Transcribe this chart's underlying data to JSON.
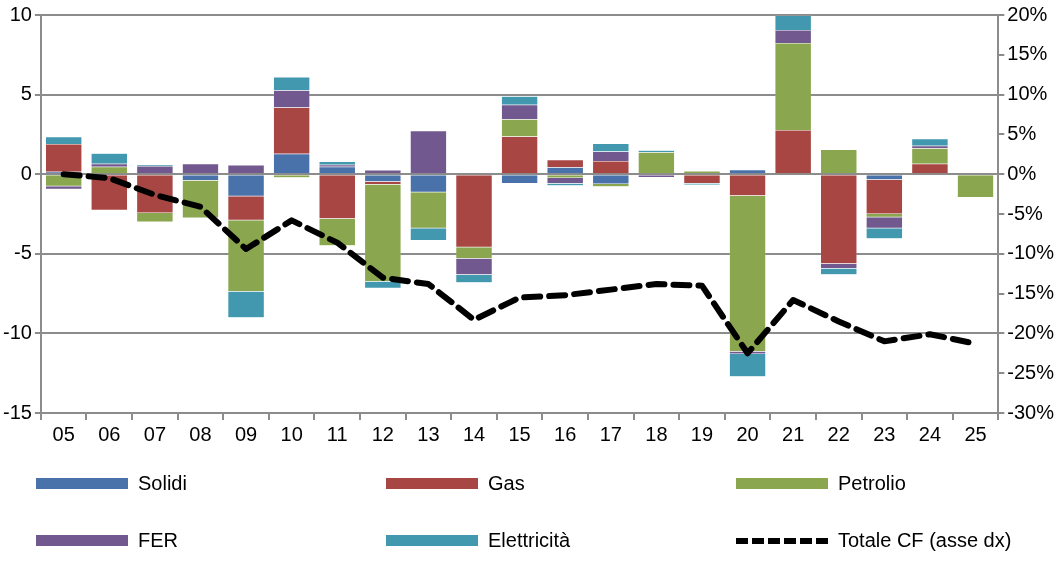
{
  "chart_data": {
    "type": "bar",
    "stacked": true,
    "categories": [
      "05",
      "06",
      "07",
      "08",
      "09",
      "10",
      "11",
      "12",
      "13",
      "14",
      "15",
      "16",
      "17",
      "18",
      "19",
      "20",
      "21",
      "22",
      "23",
      "24",
      "25"
    ],
    "series": [
      {
        "name": "Solidi",
        "color": "#4a72aa",
        "values": [
          0.15,
          null,
          null,
          -0.39,
          -1.38,
          1.28,
          0.47,
          -0.47,
          -1.13,
          null,
          -0.58,
          0.43,
          -0.62,
          null,
          null,
          0.28,
          null,
          null,
          -0.35,
          null,
          null
        ]
      },
      {
        "name": "Gas",
        "color": "#a84644",
        "values": [
          1.75,
          -2.27,
          -2.44,
          null,
          -1.52,
          2.91,
          -2.8,
          -0.18,
          null,
          -4.59,
          2.37,
          0.47,
          0.83,
          null,
          -0.58,
          -1.36,
          2.77,
          -5.62,
          -2.15,
          0.65,
          null
        ]
      },
      {
        "name": "Petrolio",
        "color": "#8aa64e",
        "values": [
          -0.75,
          0.47,
          -0.57,
          -2.36,
          -4.47,
          -0.22,
          -1.7,
          -6.09,
          -2.26,
          -0.7,
          1.08,
          -0.24,
          -0.17,
          1.38,
          0.2,
          -9.77,
          5.47,
          1.55,
          -0.21,
          0.98,
          -1.47
        ]
      },
      {
        "name": "FER",
        "color": "#71588f",
        "values": [
          -0.2,
          0.18,
          0.52,
          0.65,
          0.58,
          1.09,
          0.13,
          0.27,
          2.73,
          -1.03,
          0.91,
          -0.34,
          0.59,
          -0.2,
          null,
          -0.17,
          0.82,
          -0.3,
          -0.68,
          0.15,
          null
        ]
      },
      {
        "name": "Elettricità",
        "color": "#4298ae",
        "values": [
          0.45,
          0.67,
          0.08,
          null,
          -1.65,
          0.82,
          0.19,
          -0.42,
          -0.78,
          -0.5,
          0.54,
          -0.15,
          0.51,
          0.13,
          -0.1,
          -1.43,
          0.91,
          -0.4,
          -0.67,
          0.45,
          null
        ]
      },
      {
        "name": "Totale CF (asse dx)",
        "type": "line",
        "axis": "y2",
        "color": "#000000",
        "line_style": "dashed",
        "marker": "none",
        "values": [
          0,
          -0.5,
          -2.6,
          -4.1,
          -9.4,
          -5.8,
          -8.6,
          -13.0,
          -13.8,
          -18.3,
          -15.5,
          -15.2,
          -14.5,
          -13.8,
          -14.0,
          -22.5,
          -15.8,
          -18.5,
          -21.0,
          -20.1,
          -21.3
        ]
      }
    ],
    "ylim": [
      -15,
      10
    ],
    "yticks": [
      -15,
      -10,
      -5,
      0,
      5,
      10
    ],
    "y2lim": [
      -30,
      20
    ],
    "y2ticks": [
      {
        "value": -30,
        "label": "-30%"
      },
      {
        "value": -25,
        "label": "-25%"
      },
      {
        "value": -20,
        "label": "-20%"
      },
      {
        "value": -15,
        "label": "-15%"
      },
      {
        "value": -10,
        "label": "-10%"
      },
      {
        "value": -5,
        "label": "-5%"
      },
      {
        "value": 0,
        "label": "0%"
      },
      {
        "value": 5,
        "label": "5%"
      },
      {
        "value": 10,
        "label": "10%"
      },
      {
        "value": 15,
        "label": "15%"
      },
      {
        "value": 20,
        "label": "20%"
      }
    ],
    "grid": "y",
    "legend": "bottom"
  }
}
